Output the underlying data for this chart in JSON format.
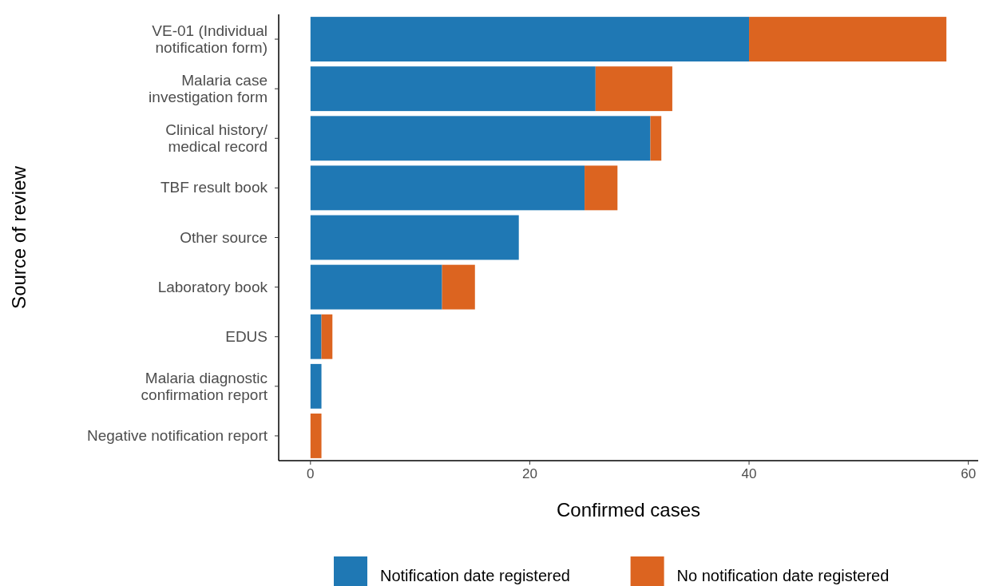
{
  "chart_data": {
    "type": "bar",
    "orientation": "horizontal",
    "stacked": true,
    "xlabel": "Confirmed cases",
    "ylabel": "Source of review",
    "categories": [
      "VE-01 (Individual\nnotification form)",
      "Malaria case\ninvestigation form",
      "Clinical history/\nmedical record",
      "TBF result book",
      "Other source",
      "Laboratory book",
      "EDUS",
      "Malaria diagnostic\nconfirmation report",
      "Negative notification report"
    ],
    "series": [
      {
        "name": "Notification date registered",
        "color": "#1f78b4",
        "values": [
          40,
          26,
          31,
          25,
          19,
          12,
          1,
          1,
          0
        ]
      },
      {
        "name": "No notification date registered",
        "color": "#dc6420",
        "values": [
          18,
          7,
          1,
          3,
          0,
          3,
          1,
          0,
          1
        ]
      }
    ],
    "xlim": [
      -2.9,
      60.9
    ],
    "xticks": [
      0,
      20,
      40,
      60
    ],
    "grid": false,
    "legend": "bottom"
  }
}
